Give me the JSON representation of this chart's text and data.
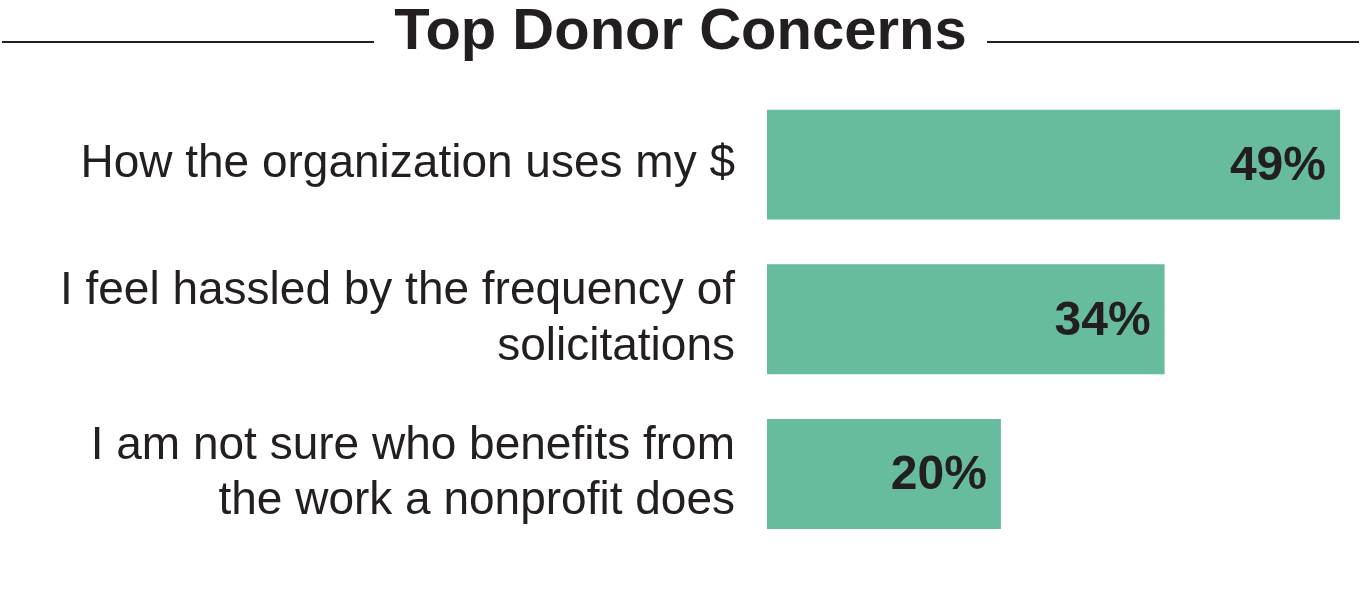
{
  "chart_data": {
    "type": "bar",
    "orientation": "horizontal",
    "title": "Top Donor Concerns",
    "categories": [
      "How the organization uses my $",
      "I feel hassled by the frequency of solicitations",
      "I am not sure who benefits from the work a nonprofit does"
    ],
    "values": [
      49,
      34,
      20
    ],
    "value_labels": [
      "49%",
      "34%",
      "20%"
    ],
    "color": "#66bc9c",
    "legend": false,
    "tick_labels": "y"
  }
}
